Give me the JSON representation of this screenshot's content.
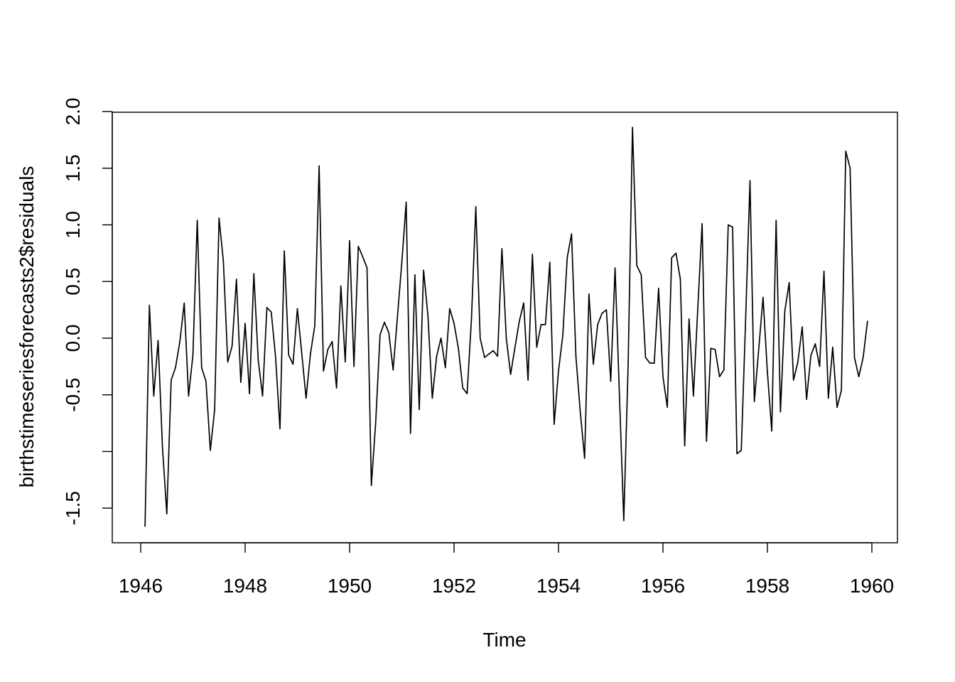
{
  "chart_data": {
    "type": "line",
    "title": "",
    "xlabel": "Time",
    "ylabel": "birthstimeseriesforecasts2$residuals",
    "xlim": [
      1945.6,
      1960.4
    ],
    "ylim": [
      -1.8,
      2.0
    ],
    "x_ticks": [
      1946,
      1948,
      1950,
      1952,
      1954,
      1956,
      1958,
      1960
    ],
    "x_tick_labels": [
      "1946",
      "1948",
      "1950",
      "1952",
      "1954",
      "1956",
      "1958",
      "1960"
    ],
    "y_ticks": [
      -1.5,
      -0.5,
      0.0,
      0.5,
      1.0,
      1.5,
      2.0
    ],
    "y_tick_labels": [
      "-1.5",
      "-0.5",
      "0.0",
      "0.5",
      "1.0",
      "1.5",
      "2.0"
    ],
    "y_minor_ticks": [
      -1.0
    ],
    "grid": false,
    "legend": "none",
    "line_color": "#000000",
    "series": [
      {
        "x_start": 1946.0833,
        "x_step": 0.083333,
        "values": [
          -1.66,
          0.29,
          -0.51,
          -0.02,
          -0.96,
          -1.55,
          -0.37,
          -0.26,
          -0.03,
          0.31,
          -0.51,
          -0.15,
          1.04,
          -0.26,
          -0.38,
          -0.99,
          -0.63,
          1.06,
          0.68,
          -0.21,
          -0.07,
          0.52,
          -0.39,
          0.13,
          -0.49,
          0.57,
          -0.19,
          -0.51,
          0.27,
          0.23,
          -0.17,
          -0.8,
          0.77,
          -0.15,
          -0.23,
          0.26,
          -0.13,
          -0.53,
          -0.14,
          0.11,
          1.52,
          -0.29,
          -0.1,
          -0.03,
          -0.44,
          0.46,
          -0.21,
          0.86,
          -0.25,
          0.81,
          0.72,
          0.62,
          -1.3,
          -0.74,
          0.03,
          0.14,
          0.05,
          -0.28,
          0.19,
          0.67,
          1.2,
          -0.84,
          0.56,
          -0.63,
          0.6,
          0.2,
          -0.53,
          -0.16,
          0.0,
          -0.26,
          0.26,
          0.13,
          -0.09,
          -0.44,
          -0.49,
          0.17,
          1.16,
          0.0,
          -0.17,
          -0.14,
          -0.11,
          -0.16,
          0.79,
          0.0,
          -0.32,
          -0.08,
          0.15,
          0.31,
          -0.37,
          0.74,
          -0.08,
          0.12,
          0.12,
          0.67,
          -0.76,
          -0.29,
          0.03,
          0.71,
          0.92,
          -0.16,
          -0.65,
          -1.06,
          0.39,
          -0.23,
          0.12,
          0.22,
          0.25,
          -0.38,
          0.62,
          -0.5,
          -1.61,
          -0.24,
          1.86,
          0.64,
          0.56,
          -0.17,
          -0.22,
          -0.22,
          0.44,
          -0.34,
          -0.61,
          0.71,
          0.75,
          0.52,
          -0.95,
          0.17,
          -0.51,
          0.26,
          1.01,
          -0.91,
          -0.09,
          -0.1,
          -0.34,
          -0.28,
          1.0,
          0.98,
          -1.02,
          -0.99,
          0.17,
          1.39,
          -0.56,
          -0.1,
          0.36,
          -0.3,
          -0.82,
          1.04,
          -0.65,
          0.24,
          0.49,
          -0.37,
          -0.21,
          0.1,
          -0.54,
          -0.15,
          -0.05,
          -0.25,
          0.59,
          -0.53,
          -0.08,
          -0.61,
          -0.46,
          1.65,
          1.5,
          -0.17,
          -0.34,
          -0.17,
          0.15
        ]
      }
    ]
  }
}
